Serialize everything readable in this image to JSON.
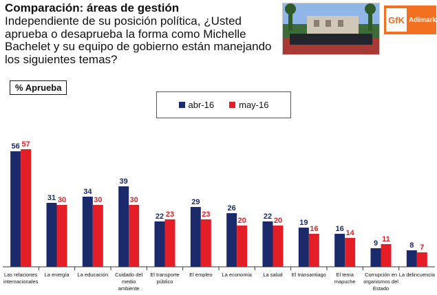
{
  "header": {
    "title": "Comparación: áreas de gestión",
    "question": "Independiente de su posición política, ¿Usted aprueba o desaprueba la forma como Michelle Bachelet y su equipo de gobierno están manejando los siguientes temas?"
  },
  "logo": {
    "mark": "GfK",
    "text": "Adimark"
  },
  "badge_label": "% Aprueba",
  "colors": {
    "series1": "#1b2a6b",
    "series2": "#e41e26"
  },
  "chart_data": {
    "type": "bar",
    "title": "",
    "xlabel": "",
    "ylabel": "% Aprueba",
    "ylim": [
      0,
      60
    ],
    "categories": [
      [
        "Las relaciones",
        "internacionales"
      ],
      [
        "La energía"
      ],
      [
        "La educación"
      ],
      [
        "Cuidado del",
        "medio",
        "ambiente"
      ],
      [
        "El transporte",
        "público"
      ],
      [
        "El empleo"
      ],
      [
        "La economía"
      ],
      [
        "La salud"
      ],
      [
        "El transantiago"
      ],
      [
        "El tema",
        "mapuche"
      ],
      [
        "Corrupción en",
        "organismos del",
        "Estado"
      ],
      [
        "La delincuencia"
      ]
    ],
    "series": [
      {
        "name": "abr-16",
        "values": [
          56,
          31,
          34,
          39,
          22,
          29,
          26,
          22,
          19,
          16,
          9,
          8
        ]
      },
      {
        "name": "may-16",
        "values": [
          57,
          30,
          30,
          30,
          23,
          23,
          20,
          20,
          16,
          14,
          11,
          7
        ]
      }
    ]
  }
}
